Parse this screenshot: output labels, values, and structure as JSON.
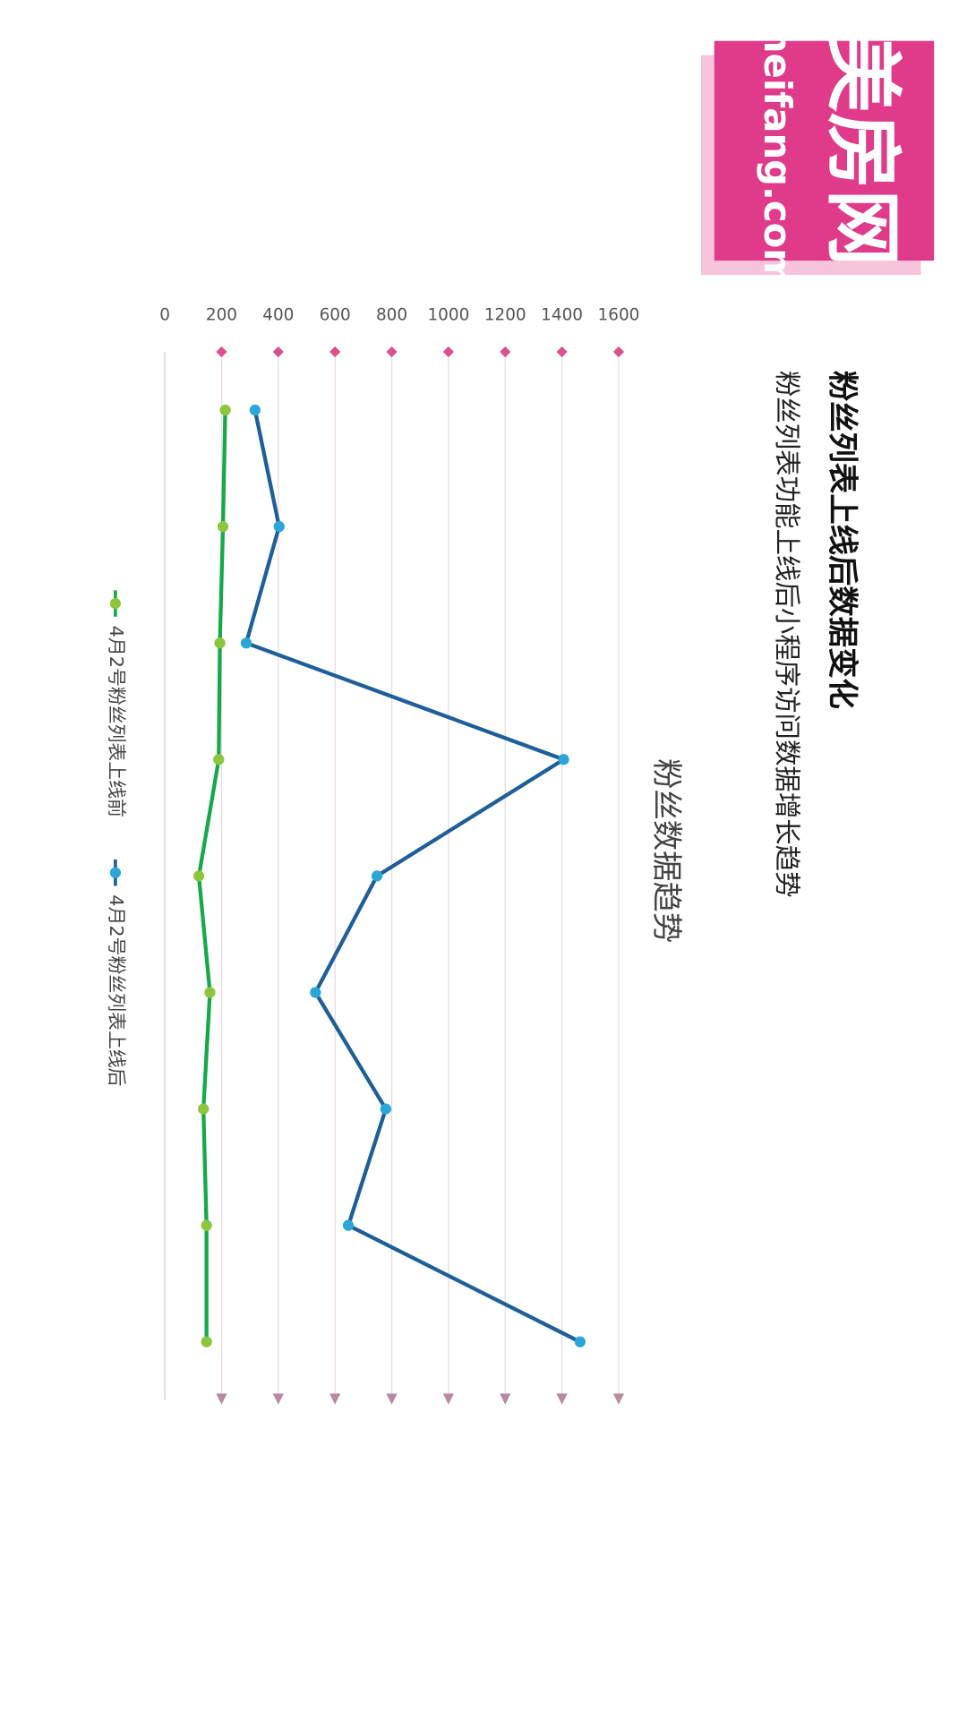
{
  "logo": {
    "name": "美房网",
    "domain": "meifang.com"
  },
  "chart_data": {
    "type": "line",
    "title": "粉丝列表上线后数据变化",
    "subtitle": "粉丝列表功能上线后小程序访问数据增长趋势",
    "chart_title": "粉丝数据趋势",
    "series": [
      {
        "name": "4月2号粉丝列表上线前",
        "color": "#16a94a",
        "marker_color": "#8cc63f",
        "values": [
          213,
          205,
          194,
          190,
          120,
          159,
          136,
          147,
          147
        ]
      },
      {
        "name": "4月2号粉丝列表上线后",
        "color": "#1f5f99",
        "marker_color": "#2ba6d8",
        "values": [
          318,
          403,
          287,
          1406,
          748,
          531,
          779,
          647,
          1464
        ]
      }
    ],
    "ylim": [
      0,
      1600
    ],
    "yticks": [
      0,
      200,
      400,
      600,
      800,
      1000,
      1200,
      1400,
      1600
    ],
    "grid": true,
    "legend": "bottom"
  }
}
